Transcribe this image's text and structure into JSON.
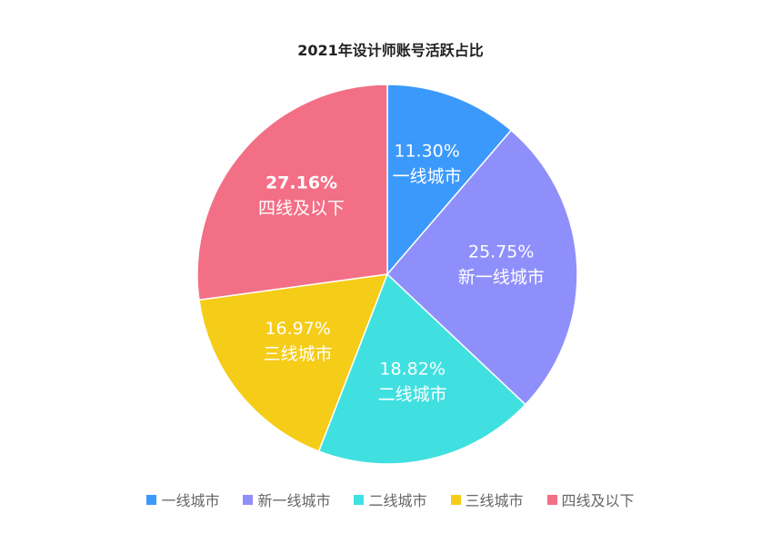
{
  "chart_data": {
    "type": "pie",
    "title": "2021年设计师账号活跃占比",
    "slices": [
      {
        "name": "一线城市",
        "value": 11.3,
        "label": "11.30%",
        "color": "#3b99fc"
      },
      {
        "name": "新一线城市",
        "value": 25.75,
        "label": "25.75%",
        "color": "#8f8ffb"
      },
      {
        "name": "二线城市",
        "value": 18.82,
        "label": "18.82%",
        "color": "#40e0e0"
      },
      {
        "name": "三线城市",
        "value": 16.97,
        "label": "16.97%",
        "color": "#f5cc17"
      },
      {
        "name": "四线及以下",
        "value": 27.16,
        "label": "27.16%",
        "color": "#f36f86"
      }
    ],
    "legend_position": "bottom",
    "start_angle_deg": 0,
    "direction": "clockwise"
  }
}
